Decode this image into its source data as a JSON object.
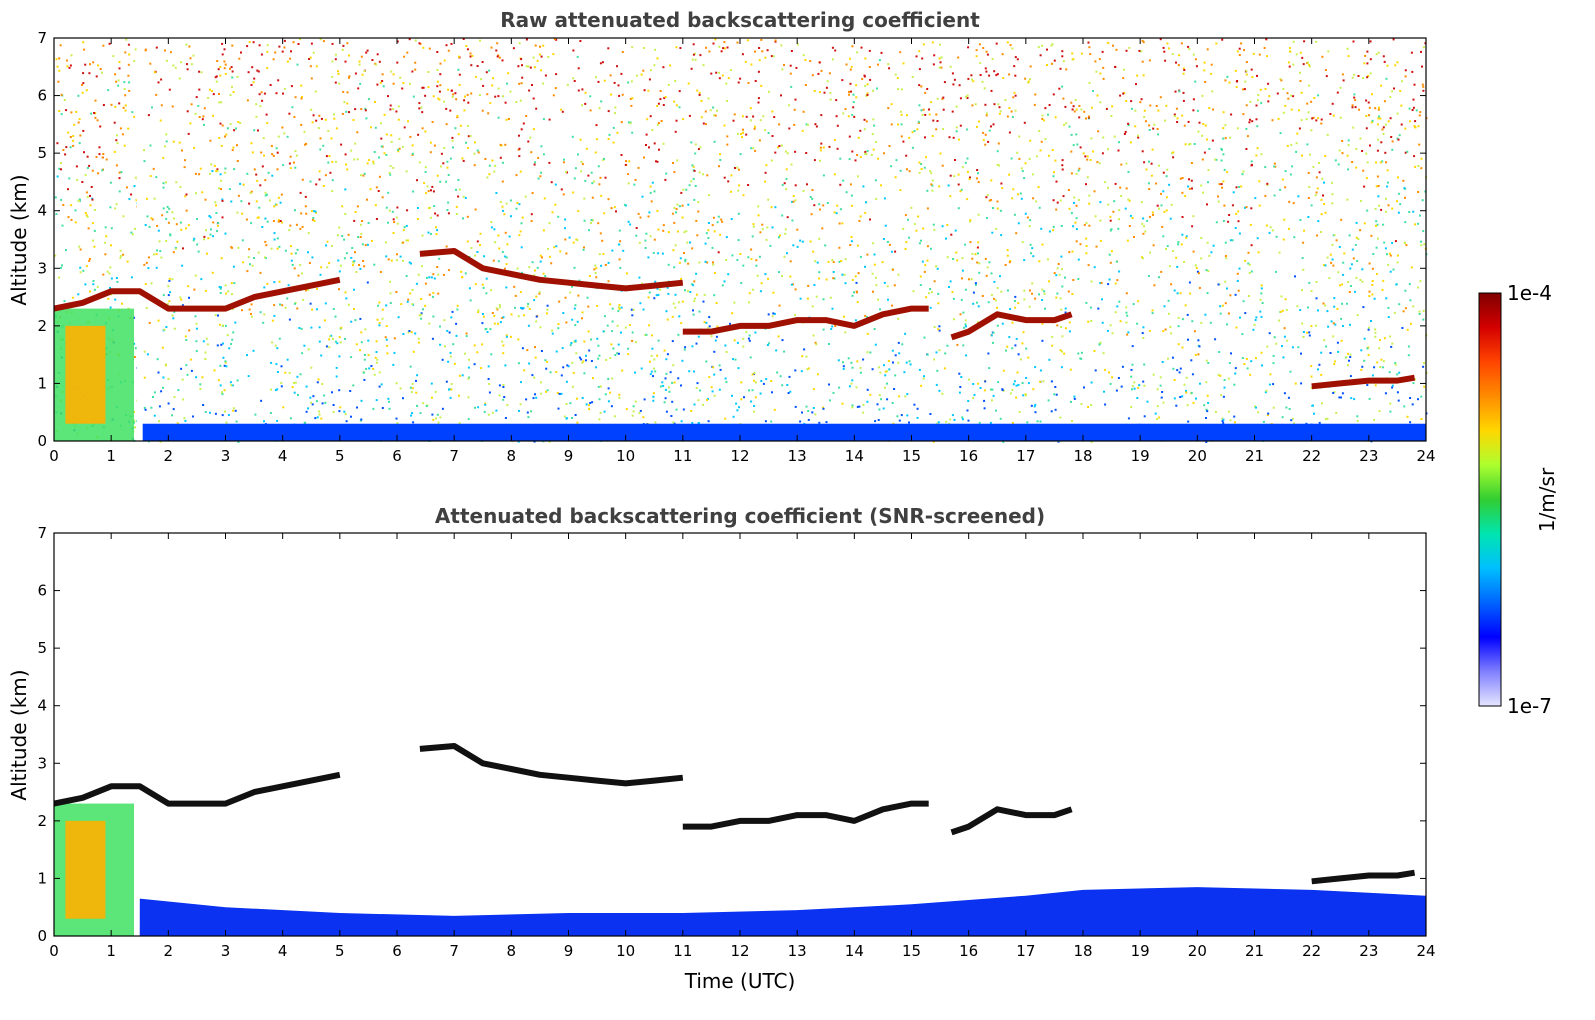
{
  "chart_data": [
    {
      "type": "heatmap",
      "title": "Raw attenuated backscattering coefficient",
      "xlabel": "",
      "ylabel": "Altitude (km)",
      "xlim": [
        0,
        24
      ],
      "ylim": [
        0,
        7
      ],
      "xticks": [
        "0",
        "1",
        "2",
        "3",
        "4",
        "5",
        "6",
        "7",
        "8",
        "9",
        "10",
        "11",
        "12",
        "13",
        "14",
        "15",
        "16",
        "17",
        "18",
        "19",
        "20",
        "21",
        "22",
        "23",
        "24"
      ],
      "yticks": [
        "0",
        "1",
        "2",
        "3",
        "4",
        "5",
        "6",
        "7"
      ],
      "background_noise": "noisy signal increasing with altitude",
      "layers": [
        {
          "x": [
            0,
            0.5,
            1.0,
            1.5,
            2,
            2.5,
            3,
            3.5,
            4,
            4.5,
            5
          ],
          "y": [
            2.3,
            2.4,
            2.6,
            2.6,
            2.3,
            2.3,
            2.3,
            2.5,
            2.6,
            2.7,
            2.8
          ]
        },
        {
          "x": [
            6.4,
            7,
            7.5,
            8,
            8.5,
            9,
            9.5,
            10,
            10.5,
            11
          ],
          "y": [
            3.25,
            3.3,
            3.0,
            2.9,
            2.8,
            2.75,
            2.7,
            2.65,
            2.7,
            2.75
          ]
        },
        {
          "x": [
            11,
            11.5,
            12,
            12.5,
            13,
            13.5,
            14,
            14.5,
            15,
            15.3
          ],
          "y": [
            1.9,
            1.9,
            2.0,
            2.0,
            2.1,
            2.1,
            2.0,
            2.2,
            2.3,
            2.3
          ]
        },
        {
          "x": [
            15.7,
            16,
            16.5,
            17,
            17.5,
            17.8
          ],
          "y": [
            1.8,
            1.9,
            2.2,
            2.1,
            2.1,
            2.2
          ]
        },
        {
          "x": [
            22,
            22.5,
            23,
            23.5,
            23.8
          ],
          "y": [
            0.95,
            1.0,
            1.05,
            1.05,
            1.1
          ]
        }
      ]
    },
    {
      "type": "heatmap",
      "title": "Attenuated backscattering coefficient (SNR-screened)",
      "xlabel": "Time (UTC)",
      "ylabel": "Altitude (km)",
      "xlim": [
        0,
        24
      ],
      "ylim": [
        0,
        7
      ],
      "xticks": [
        "0",
        "1",
        "2",
        "3",
        "4",
        "5",
        "6",
        "7",
        "8",
        "9",
        "10",
        "11",
        "12",
        "13",
        "14",
        "15",
        "16",
        "17",
        "18",
        "19",
        "20",
        "21",
        "22",
        "23",
        "24"
      ],
      "yticks": [
        "0",
        "1",
        "2",
        "3",
        "4",
        "5",
        "6",
        "7"
      ],
      "boundary_layer_top": {
        "x": [
          1.5,
          3,
          5,
          7,
          9,
          11,
          13,
          15,
          17,
          18,
          20,
          22,
          24
        ],
        "y": [
          0.65,
          0.5,
          0.4,
          0.35,
          0.4,
          0.4,
          0.45,
          0.55,
          0.7,
          0.8,
          0.85,
          0.8,
          0.7
        ]
      }
    }
  ],
  "colorbar": {
    "max_label": "1e-4",
    "min_label": "1e-7",
    "unit": "1/m/sr",
    "colors": [
      "#7f0000",
      "#d40000",
      "#ff4500",
      "#ff8c00",
      "#ffd700",
      "#adff2f",
      "#32cd32",
      "#00e5b0",
      "#00bfff",
      "#0064ff",
      "#0000ff",
      "#8080ff",
      "#e6e6ff"
    ]
  }
}
